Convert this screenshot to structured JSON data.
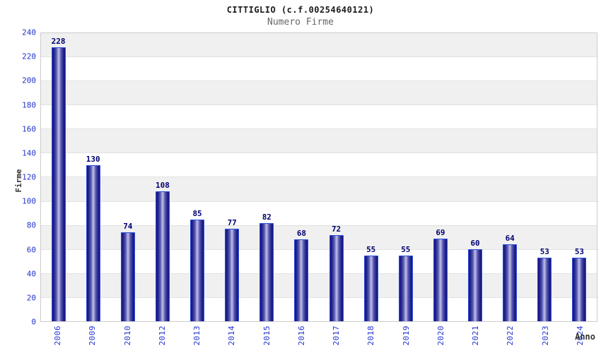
{
  "header": {
    "title": "CITTIGLIO (c.f.00254640121)",
    "subtitle": "Numero Firme"
  },
  "chart_data": {
    "type": "bar",
    "title": "CITTIGLIO (c.f.00254640121)",
    "subtitle": "Numero Firme",
    "xlabel": "Anno",
    "ylabel": "Firme",
    "categories": [
      "2006",
      "2009",
      "2010",
      "2012",
      "2013",
      "2014",
      "2015",
      "2016",
      "2017",
      "2018",
      "2019",
      "2020",
      "2021",
      "2022",
      "2023",
      "2024"
    ],
    "values": [
      228,
      130,
      74,
      108,
      85,
      77,
      82,
      68,
      72,
      55,
      55,
      69,
      60,
      64,
      53,
      53
    ],
    "ylim": [
      0,
      240
    ],
    "yticks": [
      0,
      20,
      40,
      60,
      80,
      100,
      120,
      140,
      160,
      180,
      200,
      220,
      240
    ],
    "grid": true,
    "legend": "none",
    "band_colors": [
      "#f0f0f0",
      "#ffffff"
    ],
    "colors": {
      "axis_tick_label": "#2233cc",
      "value_label": "#000070",
      "bar_border": "#2b50d8",
      "bar_dark": "#16167e",
      "bar_light": "#b7b7e2",
      "gridline": "#e2e2e2",
      "plot_border": "#cccccc",
      "title": "#1a1a1a",
      "subtitle": "#666666",
      "axis_title": "#333333"
    }
  }
}
